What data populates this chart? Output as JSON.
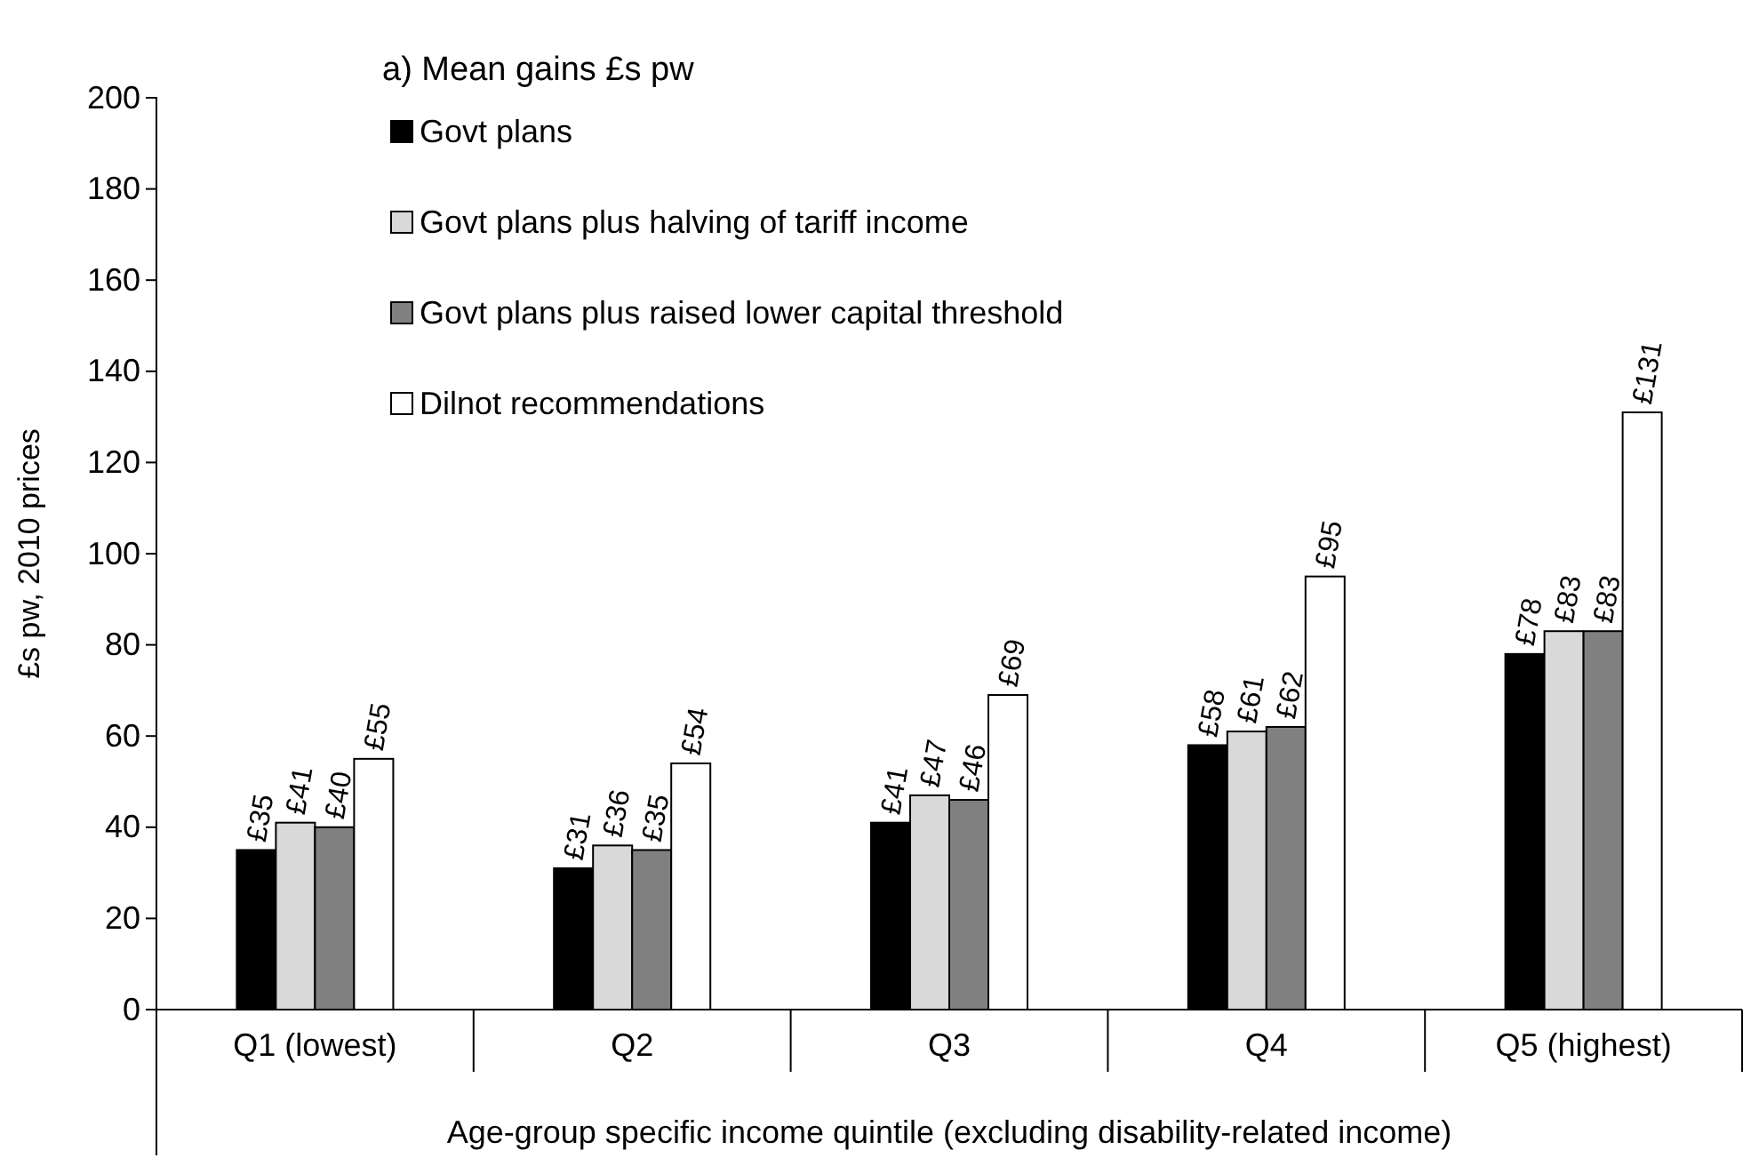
{
  "chart_data": {
    "type": "bar",
    "title": "a) Mean gains £s pw",
    "xlabel": "Age-group specific income quintile (excluding disability-related income)",
    "ylabel": "£s pw, 2010 prices",
    "categories": [
      "Q1 (lowest)",
      "Q2",
      "Q3",
      "Q4",
      "Q5 (highest)"
    ],
    "series": [
      {
        "name": "Govt plans",
        "color": "#000000",
        "values": [
          35,
          31,
          41,
          58,
          78
        ],
        "value_labels": [
          "£35",
          "£31",
          "£41",
          "£58",
          "£78"
        ]
      },
      {
        "name": "Govt plans plus halving of tariff income",
        "color": "#d9d9d9",
        "values": [
          41,
          36,
          47,
          61,
          83
        ],
        "value_labels": [
          "£41",
          "£36",
          "£47",
          "£61",
          "£83"
        ]
      },
      {
        "name": "Govt plans plus raised lower capital threshold",
        "color": "#808080",
        "values": [
          40,
          35,
          46,
          62,
          83
        ],
        "value_labels": [
          "£40",
          "£35",
          "£46",
          "£62",
          "£83"
        ]
      },
      {
        "name": "Dilnot recommendations",
        "color": "#ffffff",
        "values": [
          55,
          54,
          69,
          95,
          131
        ],
        "value_labels": [
          "£55",
          "£54",
          "£69",
          "£95",
          "£131"
        ]
      }
    ],
    "ylim": [
      0,
      200
    ],
    "yticks": [
      0,
      20,
      40,
      60,
      80,
      100,
      120,
      140,
      160,
      180,
      200
    ],
    "grid": false,
    "legend": "top left"
  }
}
